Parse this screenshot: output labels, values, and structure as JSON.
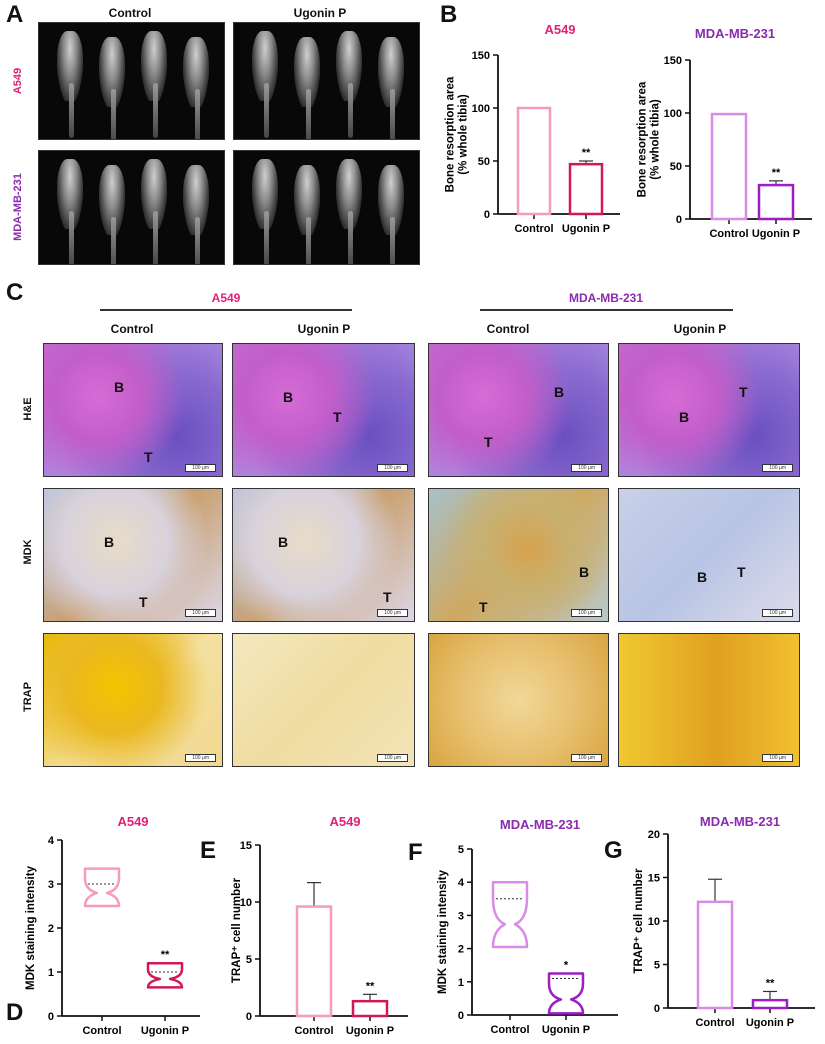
{
  "panels": {
    "A": "A",
    "B": "B",
    "C": "C",
    "D": "D",
    "E": "E",
    "F": "F",
    "G": "G"
  },
  "groups": [
    "Control",
    "Ugonin P"
  ],
  "cell_lines": {
    "a549": "A549",
    "mda": "MDA-MB-231"
  },
  "stains": [
    "H&E",
    "MDK",
    "TRAP"
  ],
  "micro_labels": {
    "he": [
      [
        "B",
        "T"
      ],
      [
        "B",
        "T"
      ],
      [
        "B",
        "T"
      ],
      [
        "T",
        "B"
      ]
    ],
    "mdk": [
      [
        "B",
        "T"
      ],
      [
        "B",
        "T"
      ],
      [
        "B",
        "T"
      ],
      [
        "T",
        "B"
      ]
    ]
  },
  "scale_bar": "100 µm",
  "colors": {
    "a549_title": "#e0207a",
    "mda_title": "#8a2bb0",
    "a549_control": "#f59bbd",
    "a549_ugonin": "#d0185a",
    "mda_control": "#d98be8",
    "mda_ugonin": "#9b1fc4"
  },
  "chart_data": [
    {
      "id": "B1",
      "type": "bar",
      "title": "A549",
      "ylabel": "Bone resorption area\n(% whole tibia)",
      "ylabel_lines": [
        "Bone resorption area",
        "(% whole tibia)"
      ],
      "categories": [
        "Control",
        "Ugonin P"
      ],
      "values": [
        100,
        47
      ],
      "errors": [
        0,
        3
      ],
      "sig": [
        "",
        "**"
      ],
      "ylim": [
        0,
        150
      ],
      "yticks": [
        "0",
        "50",
        "100",
        "150"
      ],
      "colors": [
        "#f59bbd",
        "#d0185a"
      ]
    },
    {
      "id": "B2",
      "type": "bar",
      "title": "MDA-MB-231",
      "ylabel_lines": [
        "Bone resorption area",
        "(% whole tibia)"
      ],
      "categories": [
        "Control",
        "Ugonin P"
      ],
      "values": [
        99,
        32
      ],
      "errors": [
        0,
        4
      ],
      "sig": [
        "",
        "**"
      ],
      "ylim": [
        0,
        150
      ],
      "yticks": [
        "0",
        "50",
        "100",
        "150"
      ],
      "colors": [
        "#d98be8",
        "#9b1fc4"
      ]
    },
    {
      "id": "D",
      "type": "violin",
      "title": "A549",
      "ylabel_lines": [
        "MDK staining intensity"
      ],
      "categories": [
        "Control",
        "Ugonin P"
      ],
      "min": [
        2.5,
        0.65
      ],
      "max": [
        3.35,
        1.2
      ],
      "median": [
        3.0,
        1.0
      ],
      "sig": [
        "",
        "**"
      ],
      "ylim": [
        0,
        4
      ],
      "yticks": [
        "0",
        "1",
        "2",
        "3",
        "4"
      ],
      "colors": [
        "#f59bbd",
        "#d0185a"
      ]
    },
    {
      "id": "E",
      "type": "bar",
      "title": "A549",
      "ylabel_lines": [
        "TRAP⁺ cell number"
      ],
      "categories": [
        "Control",
        "Ugonin P"
      ],
      "values": [
        9.6,
        1.3
      ],
      "errors": [
        2.1,
        0.6
      ],
      "sig": [
        "",
        "**"
      ],
      "ylim": [
        0,
        15
      ],
      "yticks": [
        "0",
        "5",
        "10",
        "15"
      ],
      "colors": [
        "#f59bbd",
        "#d0185a"
      ]
    },
    {
      "id": "F",
      "type": "violin",
      "title": "MDA-MB-231",
      "ylabel_lines": [
        "MDK staining intensity"
      ],
      "categories": [
        "Control",
        "Ugonin P"
      ],
      "min": [
        2.05,
        0.05
      ],
      "max": [
        4.0,
        1.25
      ],
      "median": [
        3.5,
        1.1
      ],
      "sig": [
        "",
        "*"
      ],
      "ylim": [
        0,
        5
      ],
      "yticks": [
        "0",
        "1",
        "2",
        "3",
        "4",
        "5"
      ],
      "colors": [
        "#d98be8",
        "#9b1fc4"
      ]
    },
    {
      "id": "G",
      "type": "bar",
      "title": "MDA-MB-231",
      "ylabel_lines": [
        "TRAP⁺ cell number"
      ],
      "categories": [
        "Control",
        "Ugonin P"
      ],
      "values": [
        12.2,
        0.9
      ],
      "errors": [
        2.6,
        1.0
      ],
      "sig": [
        "",
        "**"
      ],
      "ylim": [
        0,
        20
      ],
      "yticks": [
        "0",
        "5",
        "10",
        "15",
        "20"
      ],
      "colors": [
        "#d98be8",
        "#9b1fc4"
      ]
    }
  ]
}
